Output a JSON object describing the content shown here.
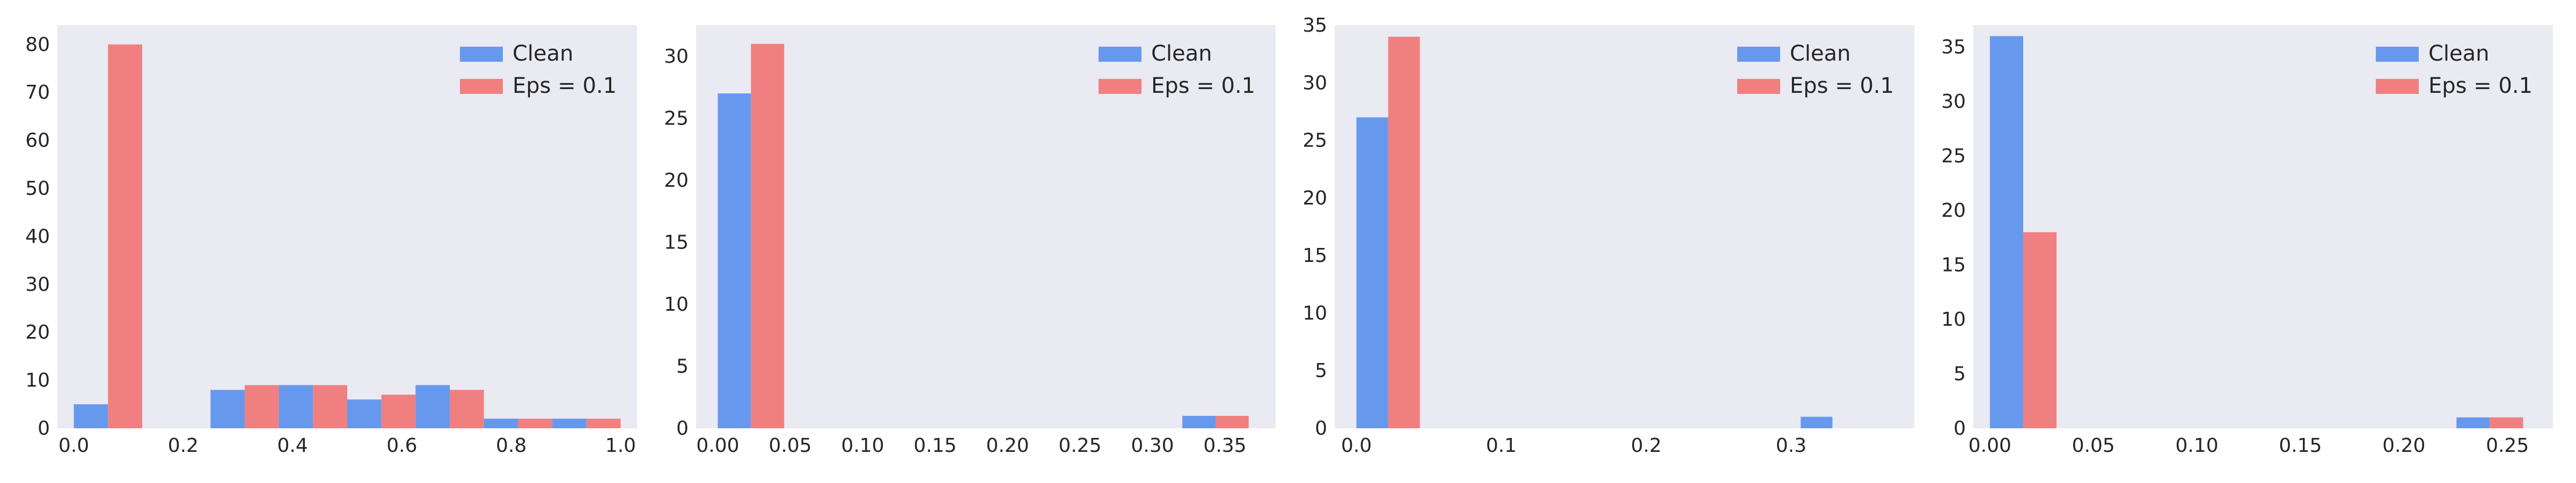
{
  "colors": {
    "clean": "#6699ee",
    "eps": "#f08080",
    "panel_bg": "#eaeaf2",
    "text": "#262626"
  },
  "legend": {
    "clean_label": "Clean",
    "eps_label": "Eps = 0.1",
    "placement": "upper right"
  },
  "chart_data": [
    {
      "type": "bar",
      "xlim": [
        -0.03,
        1.03
      ],
      "ylim": [
        0,
        84
      ],
      "xticks": [
        0.0,
        0.2,
        0.4,
        0.6,
        0.8,
        1.0
      ],
      "xtick_labels": [
        "0.0",
        "0.2",
        "0.4",
        "0.6",
        "0.8",
        "1.0"
      ],
      "yticks": [
        0,
        10,
        20,
        30,
        40,
        50,
        60,
        70,
        80
      ],
      "ytick_labels": [
        "0",
        "10",
        "20",
        "30",
        "40",
        "50",
        "60",
        "70",
        "80"
      ],
      "bin_edges": [
        0.0,
        0.125,
        0.25,
        0.375,
        0.5,
        0.625,
        0.75,
        0.875,
        1.0
      ],
      "series": [
        {
          "name": "Clean",
          "color_key": "clean",
          "values": [
            5,
            0,
            8,
            9,
            6,
            9,
            2,
            2
          ]
        },
        {
          "name": "Eps = 0.1",
          "color_key": "eps",
          "values": [
            80,
            0,
            9,
            9,
            7,
            8,
            2,
            2
          ]
        }
      ]
    },
    {
      "type": "bar",
      "xlim": [
        -0.015,
        0.385
      ],
      "ylim": [
        0,
        32.5
      ],
      "xticks": [
        0.0,
        0.05,
        0.1,
        0.15,
        0.2,
        0.25,
        0.3,
        0.35
      ],
      "xtick_labels": [
        "0.00",
        "0.05",
        "0.10",
        "0.15",
        "0.20",
        "0.25",
        "0.30",
        "0.35"
      ],
      "yticks": [
        0,
        5,
        10,
        15,
        20,
        25,
        30
      ],
      "ytick_labels": [
        "0",
        "5",
        "10",
        "15",
        "20",
        "25",
        "30"
      ],
      "bin_edges": [
        0.0,
        0.0458,
        0.0916,
        0.1374,
        0.1832,
        0.229,
        0.2748,
        0.3206,
        0.3664
      ],
      "series": [
        {
          "name": "Clean",
          "color_key": "clean",
          "values": [
            27,
            0,
            0,
            0,
            0,
            0,
            0,
            1
          ]
        },
        {
          "name": "Eps = 0.1",
          "color_key": "eps",
          "values": [
            31,
            0,
            0,
            0,
            0,
            0,
            0,
            1
          ]
        }
      ]
    },
    {
      "type": "bar",
      "xlim": [
        -0.015,
        0.385
      ],
      "ylim": [
        0,
        35
      ],
      "xticks": [
        0.0,
        0.1,
        0.2,
        0.3
      ],
      "xtick_labels": [
        "0.0",
        "0.1",
        "0.2",
        "0.3"
      ],
      "yticks": [
        0,
        5,
        10,
        15,
        20,
        25,
        30,
        35
      ],
      "ytick_labels": [
        "0",
        "5",
        "10",
        "15",
        "20",
        "25",
        "30",
        "35"
      ],
      "bin_edges": [
        0.0,
        0.0438,
        0.0876,
        0.1314,
        0.1752,
        0.219,
        0.2628,
        0.3066,
        0.3504
      ],
      "series": [
        {
          "name": "Clean",
          "color_key": "clean",
          "values": [
            27,
            0,
            0,
            0,
            0,
            0,
            0,
            1
          ]
        },
        {
          "name": "Eps = 0.1",
          "color_key": "eps",
          "values": [
            34,
            0,
            0,
            0,
            0,
            0,
            0,
            0
          ]
        }
      ]
    },
    {
      "type": "bar",
      "xlim": [
        -0.008,
        0.272
      ],
      "ylim": [
        0,
        37
      ],
      "xticks": [
        0.0,
        0.05,
        0.1,
        0.15,
        0.2,
        0.25
      ],
      "xtick_labels": [
        "0.00",
        "0.05",
        "0.10",
        "0.15",
        "0.20",
        "0.25"
      ],
      "yticks": [
        0,
        5,
        10,
        15,
        20,
        25,
        30,
        35
      ],
      "ytick_labels": [
        "0",
        "5",
        "10",
        "15",
        "20",
        "25",
        "30",
        "35"
      ],
      "bin_edges": [
        0.0,
        0.0322,
        0.0644,
        0.0966,
        0.1288,
        0.161,
        0.1932,
        0.2254,
        0.2576
      ],
      "series": [
        {
          "name": "Clean",
          "color_key": "clean",
          "values": [
            36,
            0,
            0,
            0,
            0,
            0,
            0,
            1
          ]
        },
        {
          "name": "Eps = 0.1",
          "color_key": "eps",
          "values": [
            18,
            0,
            0,
            0,
            0,
            0,
            0,
            1
          ]
        }
      ]
    }
  ]
}
